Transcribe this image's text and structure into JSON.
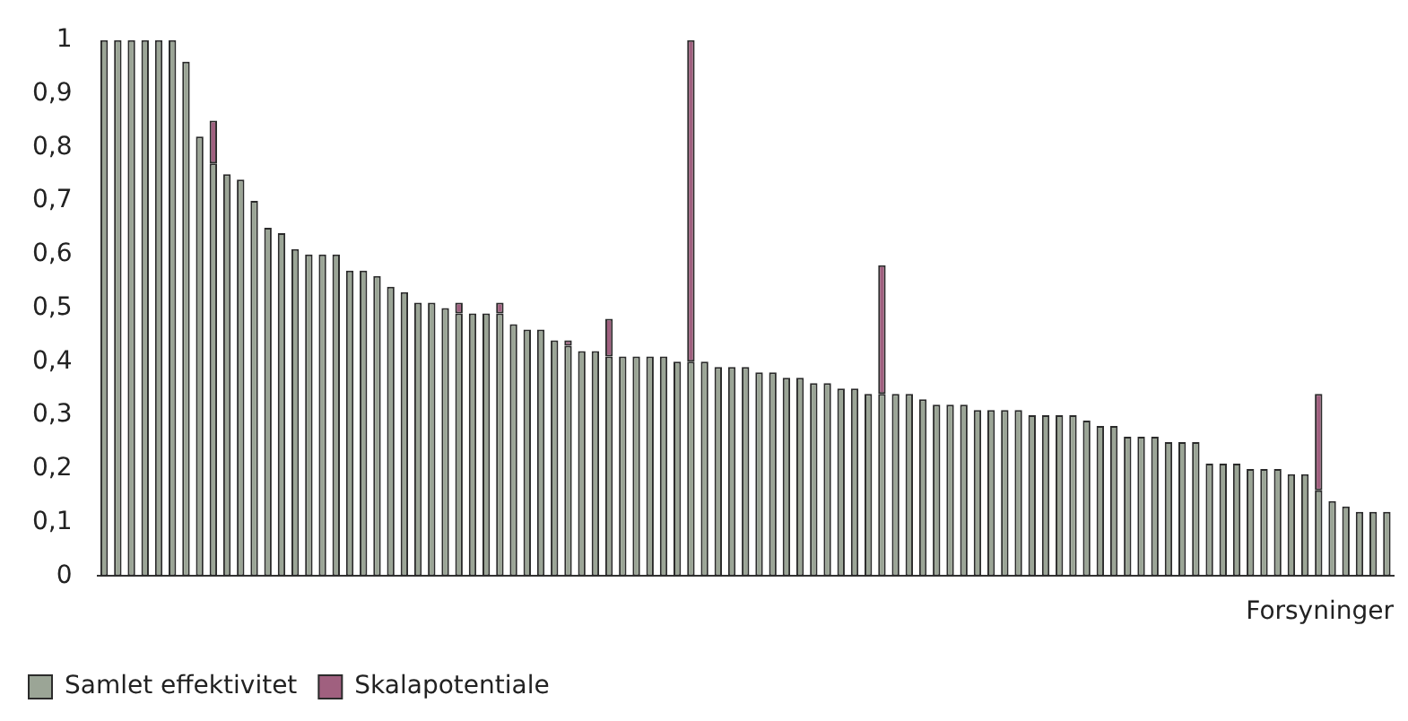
{
  "chart_data": {
    "type": "bar",
    "stacked": true,
    "xlabel": "Forsyninger",
    "legend": "bottom left",
    "grid": false,
    "categories": [
      null,
      null,
      null,
      null,
      null,
      null,
      null,
      null,
      null,
      null,
      null,
      null,
      null,
      null,
      null,
      null,
      null,
      null,
      null,
      null,
      null,
      null,
      null,
      null,
      null,
      null,
      null,
      null,
      null,
      null,
      null,
      null,
      null,
      null,
      null,
      null,
      null,
      null,
      null,
      null,
      null,
      null,
      null,
      null,
      null,
      null,
      null,
      null,
      null,
      null,
      null,
      null,
      null,
      null,
      null,
      null,
      null,
      null,
      null,
      null,
      null,
      null,
      null,
      null,
      null,
      null,
      null,
      null,
      null,
      null,
      null,
      null,
      null,
      null,
      null,
      null,
      null,
      null,
      null,
      null,
      null,
      null,
      null,
      null,
      null,
      null,
      null,
      null,
      null,
      null,
      null,
      null,
      null,
      null,
      null
    ],
    "ylim": [
      0,
      1
    ],
    "yticks": [
      0,
      {
        "value": 0.1,
        "label": "0,1"
      },
      {
        "value": 0.2,
        "label": "0,2"
      },
      {
        "value": 0.3,
        "label": "0,3"
      },
      {
        "value": 0.4,
        "label": "0,4"
      },
      {
        "value": 0.5,
        "label": "0,5"
      },
      {
        "value": 0.6,
        "label": "0,6"
      },
      {
        "value": 0.7,
        "label": "0,7"
      },
      {
        "value": 0.8,
        "label": "0,8"
      },
      {
        "value": 0.9,
        "label": "0,9"
      },
      1
    ],
    "series": [
      {
        "name": "Samlet effektivitet",
        "color": "#9ba596",
        "values": [
          1,
          1,
          1,
          1,
          1,
          1,
          0.96,
          0.82,
          0.77,
          0.75,
          0.74,
          0.7,
          0.65,
          0.64,
          0.61,
          0.6,
          0.6,
          0.6,
          0.57,
          0.57,
          0.56,
          0.54,
          0.53,
          0.51,
          0.51,
          0.5,
          0.49,
          0.49,
          0.49,
          0.49,
          0.47,
          0.46,
          0.46,
          0.44,
          0.43,
          0.42,
          0.42,
          0.41,
          0.41,
          0.41,
          0.41,
          0.41,
          0.4,
          0.4,
          0.4,
          0.39,
          0.39,
          0.39,
          0.38,
          0.38,
          0.37,
          0.37,
          0.36,
          0.36,
          0.35,
          0.35,
          0.34,
          0.34,
          0.34,
          0.34,
          0.33,
          0.32,
          0.32,
          0.32,
          0.31,
          0.31,
          0.31,
          0.31,
          0.3,
          0.3,
          0.3,
          0.3,
          0.29,
          0.28,
          0.28,
          0.26,
          0.26,
          0.26,
          0.25,
          0.25,
          0.25,
          0.21,
          0.21,
          0.21,
          0.2,
          0.2,
          0.2,
          0.19,
          0.19,
          0.16,
          0.14,
          0.13,
          0.12,
          0.12,
          0.12
        ]
      },
      {
        "name": "Skalapotentiale",
        "color": "#a0607f",
        "values": [
          null,
          null,
          null,
          null,
          null,
          null,
          null,
          null,
          0.08,
          null,
          null,
          null,
          null,
          null,
          null,
          null,
          null,
          null,
          null,
          null,
          null,
          null,
          null,
          null,
          null,
          null,
          0.02,
          null,
          null,
          0.02,
          null,
          null,
          null,
          null,
          0.01,
          null,
          null,
          0.07,
          null,
          null,
          null,
          null,
          null,
          0.6,
          null,
          null,
          null,
          null,
          null,
          null,
          null,
          null,
          null,
          null,
          null,
          null,
          null,
          0.24,
          null,
          null,
          null,
          null,
          null,
          null,
          null,
          null,
          null,
          null,
          null,
          null,
          null,
          null,
          null,
          null,
          null,
          null,
          null,
          null,
          null,
          null,
          null,
          null,
          null,
          null,
          null,
          null,
          null,
          null,
          null,
          0.18,
          null,
          null,
          null,
          null,
          null
        ]
      }
    ]
  }
}
